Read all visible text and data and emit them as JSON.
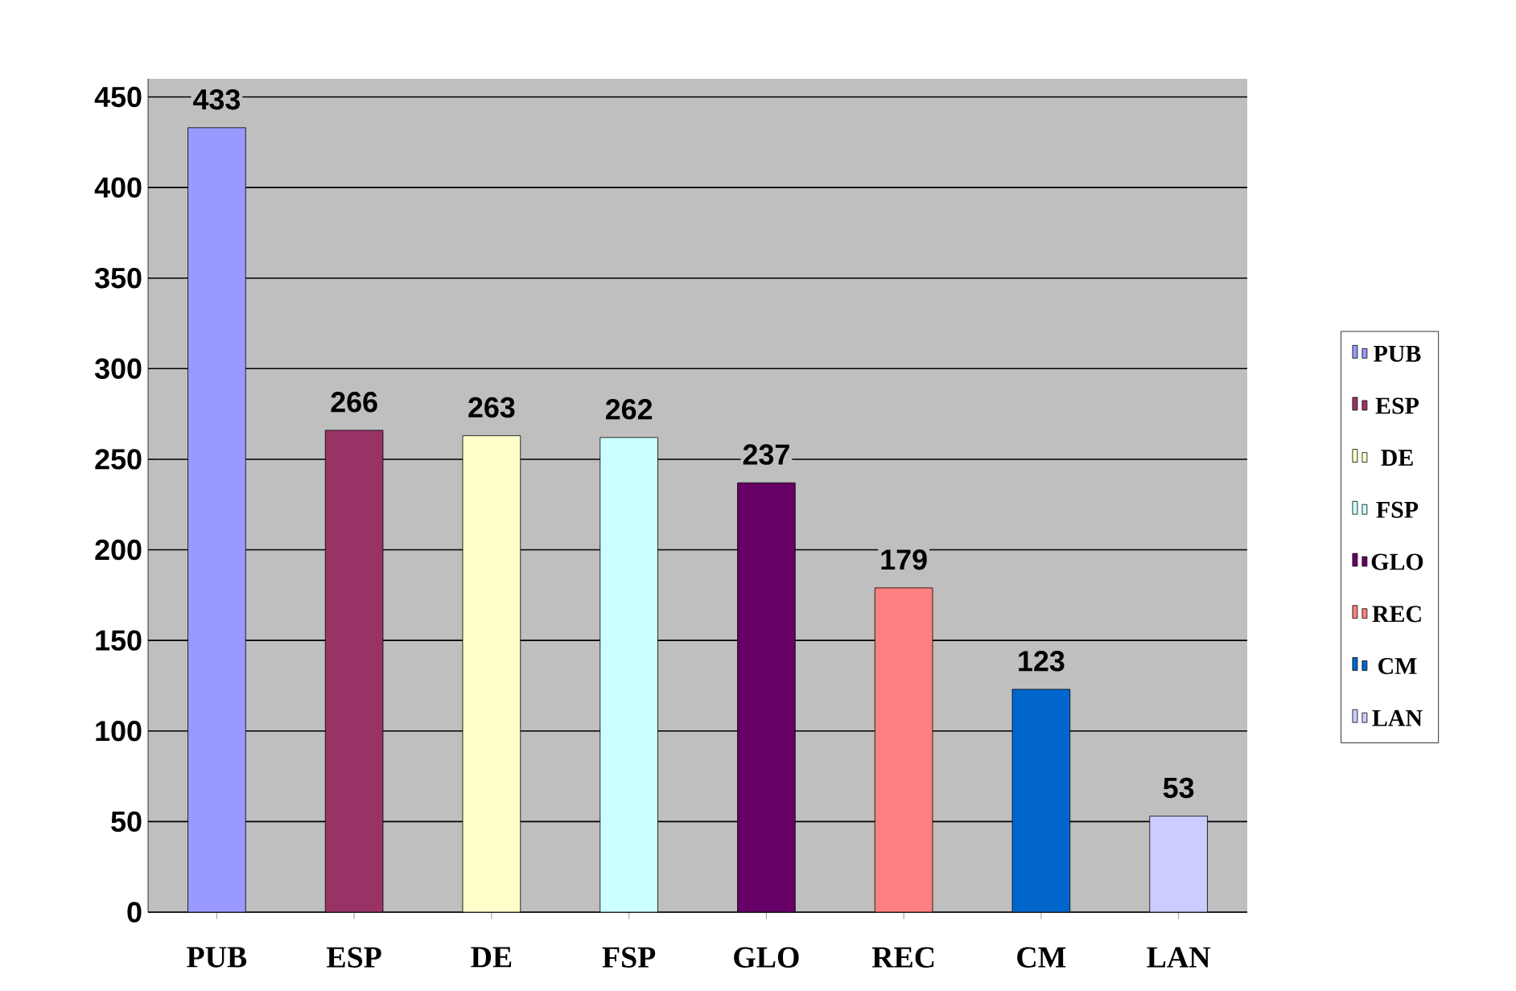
{
  "chart_data": {
    "type": "bar",
    "categories": [
      "PUB",
      "ESP",
      "DE",
      "FSP",
      "GLO",
      "REC",
      "CM",
      "LAN"
    ],
    "series": [
      {
        "name": "PUB",
        "color": "#9999ff",
        "values": [
          433,
          null,
          null,
          null,
          null,
          null,
          null,
          null
        ]
      },
      {
        "name": "ESP",
        "color": "#993366",
        "values": [
          null,
          266,
          null,
          null,
          null,
          null,
          null,
          null
        ]
      },
      {
        "name": "DE",
        "color": "#ffffcc",
        "values": [
          null,
          null,
          263,
          null,
          null,
          null,
          null,
          null
        ]
      },
      {
        "name": "FSP",
        "color": "#ccffff",
        "values": [
          null,
          null,
          null,
          262,
          null,
          null,
          null,
          null
        ]
      },
      {
        "name": "GLO",
        "color": "#660066",
        "values": [
          null,
          null,
          null,
          null,
          237,
          null,
          null,
          null
        ]
      },
      {
        "name": "REC",
        "color": "#ff8080",
        "values": [
          null,
          null,
          null,
          null,
          null,
          179,
          null,
          null
        ]
      },
      {
        "name": "CM",
        "color": "#0066cc",
        "values": [
          null,
          null,
          null,
          null,
          null,
          null,
          123,
          null
        ]
      },
      {
        "name": "LAN",
        "color": "#ccccff",
        "values": [
          null,
          null,
          null,
          null,
          null,
          null,
          null,
          53
        ]
      }
    ],
    "ylim": [
      0,
      460
    ],
    "yticks": [
      0,
      50,
      100,
      150,
      200,
      250,
      300,
      350,
      400,
      450
    ],
    "grid": "y",
    "data_labels": true,
    "legend": "right"
  }
}
